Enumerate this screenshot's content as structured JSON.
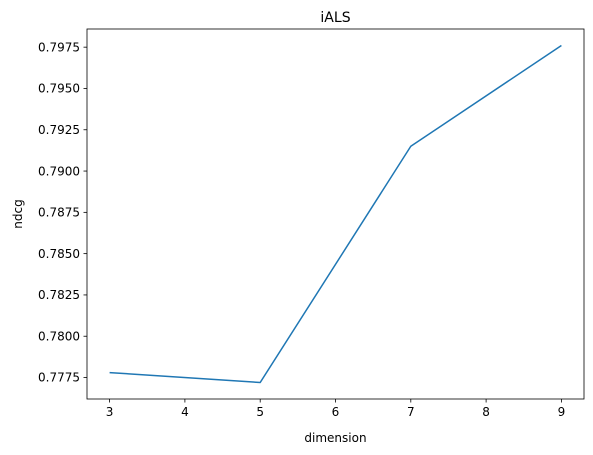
{
  "chart_data": {
    "type": "line",
    "title": "iALS",
    "xlabel": "dimension",
    "ylabel": "ndcg",
    "x": [
      3,
      5,
      7,
      9
    ],
    "series": [
      {
        "values": [
          0.7778,
          0.7772,
          0.7915,
          0.7976
        ]
      }
    ],
    "xlim": [
      2.7,
      9.3
    ],
    "ylim": [
      0.7762,
      0.7986
    ],
    "xticks": [
      3,
      4,
      5,
      6,
      7,
      8,
      9
    ],
    "xtick_labels": [
      "3",
      "4",
      "5",
      "6",
      "7",
      "8",
      "9"
    ],
    "yticks": [
      0.7775,
      0.78,
      0.7825,
      0.785,
      0.7875,
      0.79,
      0.7925,
      0.795,
      0.7975
    ],
    "ytick_labels": [
      "0.7775",
      "0.7800",
      "0.7825",
      "0.7850",
      "0.7875",
      "0.7900",
      "0.7925",
      "0.7950",
      "0.7975"
    ],
    "grid": false,
    "line_color": "#1f77b4"
  }
}
